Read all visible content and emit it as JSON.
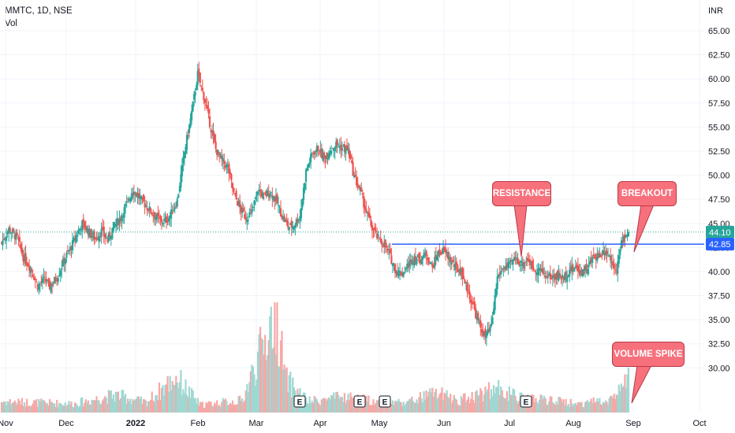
{
  "legend": {
    "symbol_line": "MMTC, 1D, NSE",
    "volume_label": "Vol"
  },
  "colors": {
    "up": "#26a69a",
    "down": "#ef5350",
    "resistance_line": "#2962ff",
    "last_price_badge": "#26a69a",
    "callout": "#f7717d",
    "background": "#ffffff",
    "grid": "#f0f3fa"
  },
  "callouts": {
    "resistance": "RESISTANCE",
    "breakout": "BREAKOUT",
    "volume_spike": "VOLUME SPIKE"
  },
  "chart_data": {
    "type": "candlestick",
    "currency_label": "INR",
    "y_ticks": [
      "65.00",
      "62.50",
      "60.00",
      "57.50",
      "55.00",
      "52.50",
      "50.00",
      "47.50",
      "45.00",
      "42.50",
      "40.00",
      "37.50",
      "35.00",
      "32.50",
      "30.00"
    ],
    "x_ticks": [
      "Nov",
      "Dec",
      "2022",
      "Feb",
      "Mar",
      "Apr",
      "May",
      "Jun",
      "Jul",
      "Aug",
      "Sep",
      "Oct"
    ],
    "ylim": [
      27.9,
      66.8
    ],
    "last_price": "44.10",
    "resistance_level": "42.85",
    "earnings_markers": [
      "E",
      "E",
      "E",
      "E"
    ],
    "price_path": [
      [
        0,
        43
      ],
      [
        6,
        44.4
      ],
      [
        13,
        43.5
      ],
      [
        18,
        41.5
      ],
      [
        24,
        40.4
      ],
      [
        30,
        38.5
      ],
      [
        36,
        39.2
      ],
      [
        40,
        38.4
      ],
      [
        46,
        39.4
      ],
      [
        52,
        41.2
      ],
      [
        58,
        42.6
      ],
      [
        63,
        44
      ],
      [
        67,
        45
      ],
      [
        72,
        44.2
      ],
      [
        78,
        43.4
      ],
      [
        83,
        44.2
      ],
      [
        88,
        43.2
      ],
      [
        93,
        44.7
      ],
      [
        98,
        45.4
      ],
      [
        104,
        47
      ],
      [
        109,
        48.5
      ],
      [
        115,
        47.6
      ],
      [
        121,
        46.7
      ],
      [
        126,
        46
      ],
      [
        131,
        45.3
      ],
      [
        136,
        45.2
      ],
      [
        140,
        45.8
      ],
      [
        146,
        47.4
      ],
      [
        152,
        52.4
      ],
      [
        158,
        56.5
      ],
      [
        163,
        60.5
      ],
      [
        168,
        58.2
      ],
      [
        173,
        55.4
      ],
      [
        178,
        52.7
      ],
      [
        183,
        51.5
      ],
      [
        188,
        50.8
      ],
      [
        193,
        48.1
      ],
      [
        198,
        46.6
      ],
      [
        203,
        45.6
      ],
      [
        208,
        46.2
      ],
      [
        213,
        48.5
      ],
      [
        218,
        47.8
      ],
      [
        223,
        48.3
      ],
      [
        228,
        47.4
      ],
      [
        233,
        45.8
      ],
      [
        238,
        44.7
      ],
      [
        242,
        44.7
      ],
      [
        248,
        45.8
      ],
      [
        253,
        50.4
      ],
      [
        258,
        52.2
      ],
      [
        263,
        52.8
      ],
      [
        268,
        51.6
      ],
      [
        273,
        52.7
      ],
      [
        278,
        53.2
      ],
      [
        283,
        52.8
      ],
      [
        288,
        52.6
      ],
      [
        293,
        49.8
      ],
      [
        298,
        48.4
      ],
      [
        303,
        46.2
      ],
      [
        308,
        44.5
      ],
      [
        313,
        43.4
      ],
      [
        318,
        42.8
      ],
      [
        323,
        41.5
      ],
      [
        328,
        40
      ],
      [
        333,
        39.8
      ],
      [
        338,
        40.7
      ],
      [
        343,
        41.5
      ],
      [
        348,
        41.3
      ],
      [
        353,
        41.8
      ],
      [
        358,
        40.4
      ],
      [
        362,
        41.8
      ],
      [
        367,
        42.2
      ],
      [
        372,
        41.4
      ],
      [
        377,
        40.4
      ],
      [
        382,
        40
      ],
      [
        387,
        38.2
      ],
      [
        392,
        36.4
      ],
      [
        397,
        34.4
      ],
      [
        402,
        33.2
      ],
      [
        407,
        34.2
      ],
      [
        412,
        39.4
      ],
      [
        417,
        40.4
      ],
      [
        422,
        40.6
      ],
      [
        427,
        41.4
      ],
      [
        432,
        40.8
      ],
      [
        437,
        41.3
      ],
      [
        442,
        40.3
      ],
      [
        447,
        40.2
      ],
      [
        452,
        39.6
      ],
      [
        457,
        39.4
      ],
      [
        462,
        39.6
      ],
      [
        467,
        39.3
      ],
      [
        472,
        40.2
      ],
      [
        477,
        40.4
      ],
      [
        482,
        40
      ],
      [
        487,
        40.4
      ],
      [
        492,
        41.5
      ],
      [
        497,
        41.7
      ],
      [
        502,
        42.3
      ],
      [
        506,
        41.3
      ],
      [
        511,
        40.3
      ],
      [
        516,
        43.4
      ],
      [
        521,
        44.1
      ]
    ],
    "volume_profile": [
      [
        0,
        0.5
      ],
      [
        60,
        0.4
      ],
      [
        95,
        0.8
      ],
      [
        120,
        0.45
      ],
      [
        145,
        1.6
      ],
      [
        165,
        0.35
      ],
      [
        200,
        0.55
      ],
      [
        228,
        4.6
      ],
      [
        236,
        1.5
      ],
      [
        255,
        0.5
      ],
      [
        285,
        0.7
      ],
      [
        320,
        0.45
      ],
      [
        340,
        0.5
      ],
      [
        360,
        0.9
      ],
      [
        380,
        0.55
      ],
      [
        412,
        1.1
      ],
      [
        430,
        0.65
      ],
      [
        455,
        0.55
      ],
      [
        480,
        0.4
      ],
      [
        508,
        0.65
      ],
      [
        521,
        1.5
      ]
    ],
    "volume_peak": "VOLUME SPIKE"
  }
}
